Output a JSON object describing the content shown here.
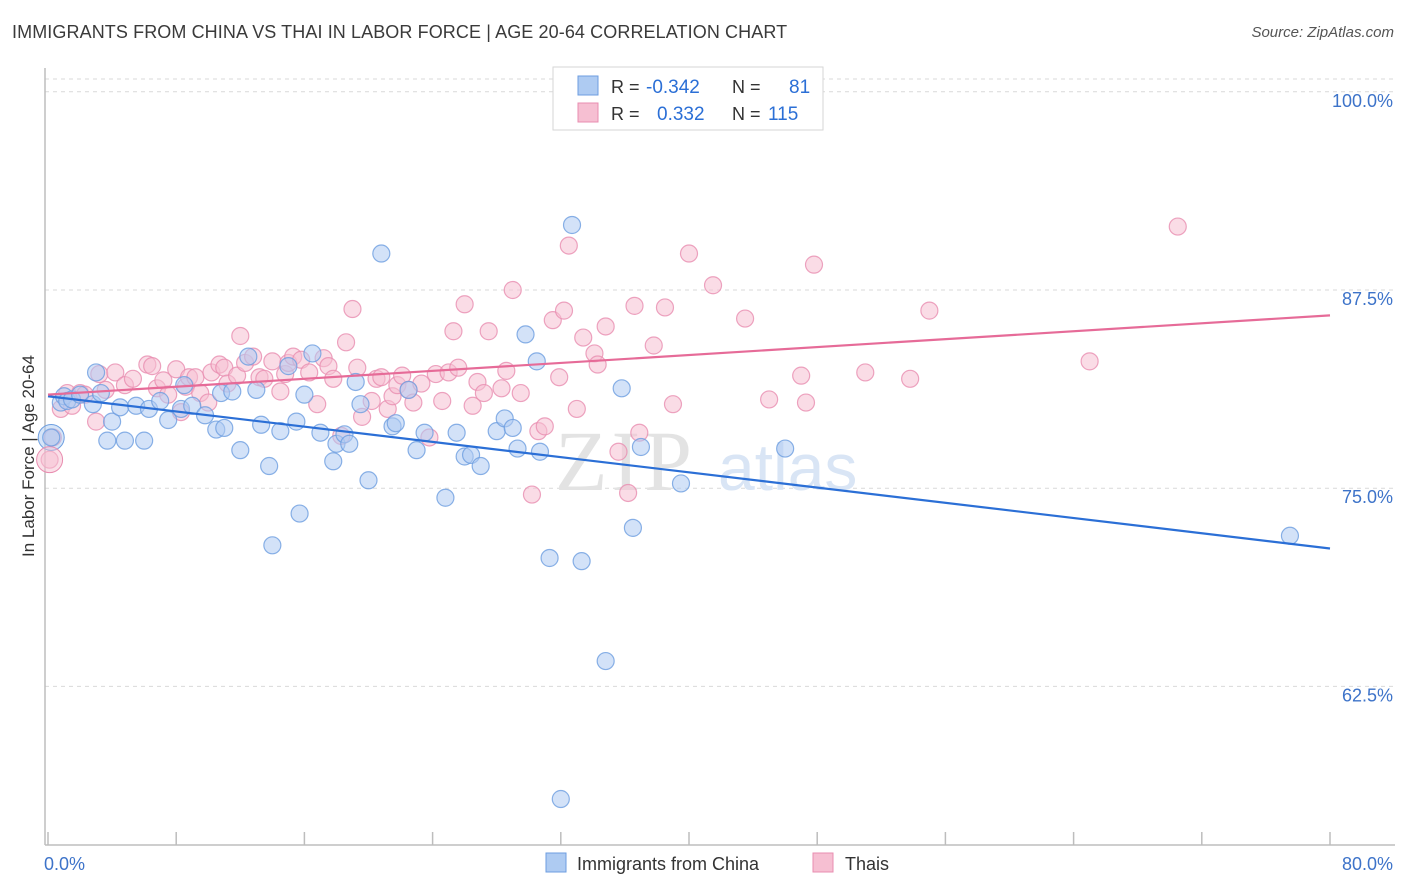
{
  "title": "IMMIGRANTS FROM CHINA VS THAI IN LABOR FORCE | AGE 20-64 CORRELATION CHART",
  "source": "Source: ZipAtlas.com",
  "watermark": {
    "zip": "ZIP",
    "atlas": "atlas"
  },
  "colors": {
    "blue": "#2b6fd6",
    "pink": "#e66b98",
    "blue_fill": "#aecbf2",
    "pink_fill": "#f6bfd2",
    "axis_text": "#3d73c9",
    "grid": "#d9d9d9"
  },
  "legend_top": [
    {
      "r_label": "R =",
      "r_value": "-0.342",
      "n_label": "N =",
      "n_value": "81"
    },
    {
      "r_label": "R =",
      "r_value": "0.332",
      "n_label": "N =",
      "n_value": "115"
    }
  ],
  "chart_data": {
    "type": "scatter",
    "title": "IMMIGRANTS FROM CHINA VS THAI IN LABOR FORCE | AGE 20-64 CORRELATION CHART",
    "xlabel": "",
    "ylabel": "In Labor Force | Age 20-64",
    "xlim": [
      0,
      80
    ],
    "ylim": [
      52.5,
      101.5
    ],
    "x_tick_labels": [
      "0.0%",
      "80.0%"
    ],
    "y_ticks": [
      62.5,
      75.0,
      87.5,
      100.0
    ],
    "y_tick_labels": [
      "62.5%",
      "75.0%",
      "87.5%",
      "100.0%"
    ],
    "grid": true,
    "legend_position": "top-center and bottom",
    "series": [
      {
        "name": "Immigrants from China",
        "color": "blue",
        "r": -0.342,
        "n": 81,
        "trend": {
          "x": [
            0,
            80
          ],
          "y": [
            80.8,
            71.2
          ]
        },
        "points": [
          [
            0.2,
            78.2
          ],
          [
            0.8,
            80.4
          ],
          [
            1.0,
            80.8
          ],
          [
            1.2,
            80.5
          ],
          [
            1.5,
            80.6
          ],
          [
            2.0,
            80.9
          ],
          [
            2.8,
            80.3
          ],
          [
            3.0,
            82.3
          ],
          [
            3.3,
            81.0
          ],
          [
            3.7,
            78.0
          ],
          [
            4.0,
            79.2
          ],
          [
            4.5,
            80.1
          ],
          [
            4.8,
            78.0
          ],
          [
            5.5,
            80.2
          ],
          [
            6.0,
            78.0
          ],
          [
            6.3,
            80.0
          ],
          [
            7.0,
            80.5
          ],
          [
            7.5,
            79.3
          ],
          [
            8.3,
            80.0
          ],
          [
            8.5,
            81.5
          ],
          [
            9.0,
            80.2
          ],
          [
            9.8,
            79.6
          ],
          [
            10.5,
            78.7
          ],
          [
            10.8,
            81.0
          ],
          [
            11.0,
            78.8
          ],
          [
            11.5,
            81.1
          ],
          [
            12.0,
            77.4
          ],
          [
            12.5,
            83.3
          ],
          [
            13.0,
            81.2
          ],
          [
            13.3,
            79.0
          ],
          [
            13.8,
            76.4
          ],
          [
            14.0,
            71.4
          ],
          [
            14.5,
            78.6
          ],
          [
            15.0,
            82.7
          ],
          [
            15.5,
            79.2
          ],
          [
            15.7,
            73.4
          ],
          [
            16.0,
            80.9
          ],
          [
            16.5,
            83.5
          ],
          [
            17.0,
            78.5
          ],
          [
            17.8,
            76.7
          ],
          [
            18.0,
            77.8
          ],
          [
            18.5,
            78.4
          ],
          [
            18.8,
            77.8
          ],
          [
            19.2,
            81.7
          ],
          [
            19.5,
            80.3
          ],
          [
            20.0,
            75.5
          ],
          [
            20.8,
            89.8
          ],
          [
            21.5,
            78.9
          ],
          [
            21.7,
            79.1
          ],
          [
            22.5,
            81.2
          ],
          [
            23.0,
            77.4
          ],
          [
            23.5,
            78.5
          ],
          [
            24.8,
            74.4
          ],
          [
            25.5,
            78.5
          ],
          [
            26.0,
            77.0
          ],
          [
            26.4,
            77.1
          ],
          [
            27.0,
            76.4
          ],
          [
            28.0,
            78.6
          ],
          [
            28.5,
            79.4
          ],
          [
            29.0,
            78.8
          ],
          [
            29.3,
            77.5
          ],
          [
            29.8,
            84.7
          ],
          [
            30.5,
            83.0
          ],
          [
            30.7,
            77.3
          ],
          [
            31.3,
            70.6
          ],
          [
            32.0,
            55.4
          ],
          [
            32.7,
            91.6
          ],
          [
            33.3,
            70.4
          ],
          [
            34.8,
            64.1
          ],
          [
            35.8,
            81.3
          ],
          [
            36.5,
            72.5
          ],
          [
            37.0,
            77.6
          ],
          [
            39.5,
            75.3
          ],
          [
            46.0,
            77.5
          ],
          [
            77.5,
            72.0
          ]
        ]
      },
      {
        "name": "Thais",
        "color": "pink",
        "r": 0.332,
        "n": 115,
        "trend": {
          "x": [
            0,
            80
          ],
          "y": [
            80.9,
            85.9
          ]
        },
        "points": [
          [
            0.1,
            76.8
          ],
          [
            0.3,
            78.2
          ],
          [
            0.8,
            80.0
          ],
          [
            1.2,
            81.0
          ],
          [
            1.5,
            80.2
          ],
          [
            2.0,
            81.0
          ],
          [
            2.3,
            80.9
          ],
          [
            3.0,
            79.2
          ],
          [
            3.2,
            82.2
          ],
          [
            3.6,
            81.2
          ],
          [
            4.2,
            82.3
          ],
          [
            4.8,
            81.5
          ],
          [
            5.3,
            81.9
          ],
          [
            6.2,
            82.8
          ],
          [
            6.5,
            82.7
          ],
          [
            6.8,
            81.3
          ],
          [
            7.2,
            81.8
          ],
          [
            7.5,
            80.9
          ],
          [
            8.0,
            82.5
          ],
          [
            8.3,
            79.8
          ],
          [
            8.6,
            81.4
          ],
          [
            8.8,
            82.0
          ],
          [
            9.2,
            82.0
          ],
          [
            9.5,
            81.0
          ],
          [
            10.0,
            80.4
          ],
          [
            10.2,
            82.3
          ],
          [
            10.7,
            82.8
          ],
          [
            11.0,
            82.6
          ],
          [
            11.2,
            81.6
          ],
          [
            11.8,
            82.1
          ],
          [
            12.0,
            84.6
          ],
          [
            12.3,
            82.9
          ],
          [
            12.8,
            83.3
          ],
          [
            13.2,
            82.0
          ],
          [
            13.5,
            81.9
          ],
          [
            14.0,
            83.0
          ],
          [
            14.5,
            81.1
          ],
          [
            14.8,
            82.2
          ],
          [
            15.0,
            82.9
          ],
          [
            15.3,
            83.3
          ],
          [
            15.8,
            83.1
          ],
          [
            16.3,
            82.3
          ],
          [
            16.8,
            80.3
          ],
          [
            17.2,
            83.2
          ],
          [
            17.5,
            82.7
          ],
          [
            17.8,
            81.9
          ],
          [
            18.3,
            78.3
          ],
          [
            18.6,
            84.2
          ],
          [
            19.0,
            86.3
          ],
          [
            19.3,
            82.6
          ],
          [
            19.6,
            79.5
          ],
          [
            20.2,
            80.5
          ],
          [
            20.5,
            81.9
          ],
          [
            20.8,
            82.0
          ],
          [
            21.2,
            80.0
          ],
          [
            21.5,
            80.8
          ],
          [
            21.8,
            81.5
          ],
          [
            22.1,
            82.1
          ],
          [
            22.5,
            81.2
          ],
          [
            22.8,
            80.4
          ],
          [
            23.3,
            81.6
          ],
          [
            23.8,
            78.2
          ],
          [
            24.2,
            82.2
          ],
          [
            24.6,
            80.5
          ],
          [
            25.0,
            82.3
          ],
          [
            25.3,
            84.9
          ],
          [
            25.6,
            82.6
          ],
          [
            26.0,
            86.6
          ],
          [
            26.5,
            80.2
          ],
          [
            26.8,
            81.7
          ],
          [
            27.2,
            81.0
          ],
          [
            27.5,
            84.9
          ],
          [
            28.3,
            81.3
          ],
          [
            28.6,
            82.4
          ],
          [
            29.0,
            87.5
          ],
          [
            29.5,
            81.0
          ],
          [
            30.2,
            74.6
          ],
          [
            30.6,
            78.6
          ],
          [
            31.0,
            78.9
          ],
          [
            31.5,
            85.6
          ],
          [
            31.9,
            82.0
          ],
          [
            32.2,
            86.2
          ],
          [
            32.5,
            90.3
          ],
          [
            33.0,
            80.0
          ],
          [
            33.4,
            84.5
          ],
          [
            34.1,
            83.5
          ],
          [
            34.3,
            82.8
          ],
          [
            34.8,
            85.2
          ],
          [
            35.6,
            77.3
          ],
          [
            36.2,
            74.7
          ],
          [
            36.6,
            86.5
          ],
          [
            36.9,
            78.5
          ],
          [
            37.8,
            84.0
          ],
          [
            38.5,
            86.4
          ],
          [
            39.0,
            80.3
          ],
          [
            40.0,
            89.8
          ],
          [
            41.5,
            87.8
          ],
          [
            43.5,
            85.7
          ],
          [
            45.0,
            80.6
          ],
          [
            47.0,
            82.1
          ],
          [
            47.3,
            80.4
          ],
          [
            47.8,
            89.1
          ],
          [
            51.0,
            82.3
          ],
          [
            53.8,
            81.9
          ],
          [
            55.0,
            86.2
          ],
          [
            65.0,
            83.0
          ],
          [
            70.5,
            91.5
          ]
        ]
      }
    ]
  },
  "bottom_legend": [
    {
      "label": "Immigrants from China",
      "color": "blue"
    },
    {
      "label": "Thais",
      "color": "pink"
    }
  ]
}
